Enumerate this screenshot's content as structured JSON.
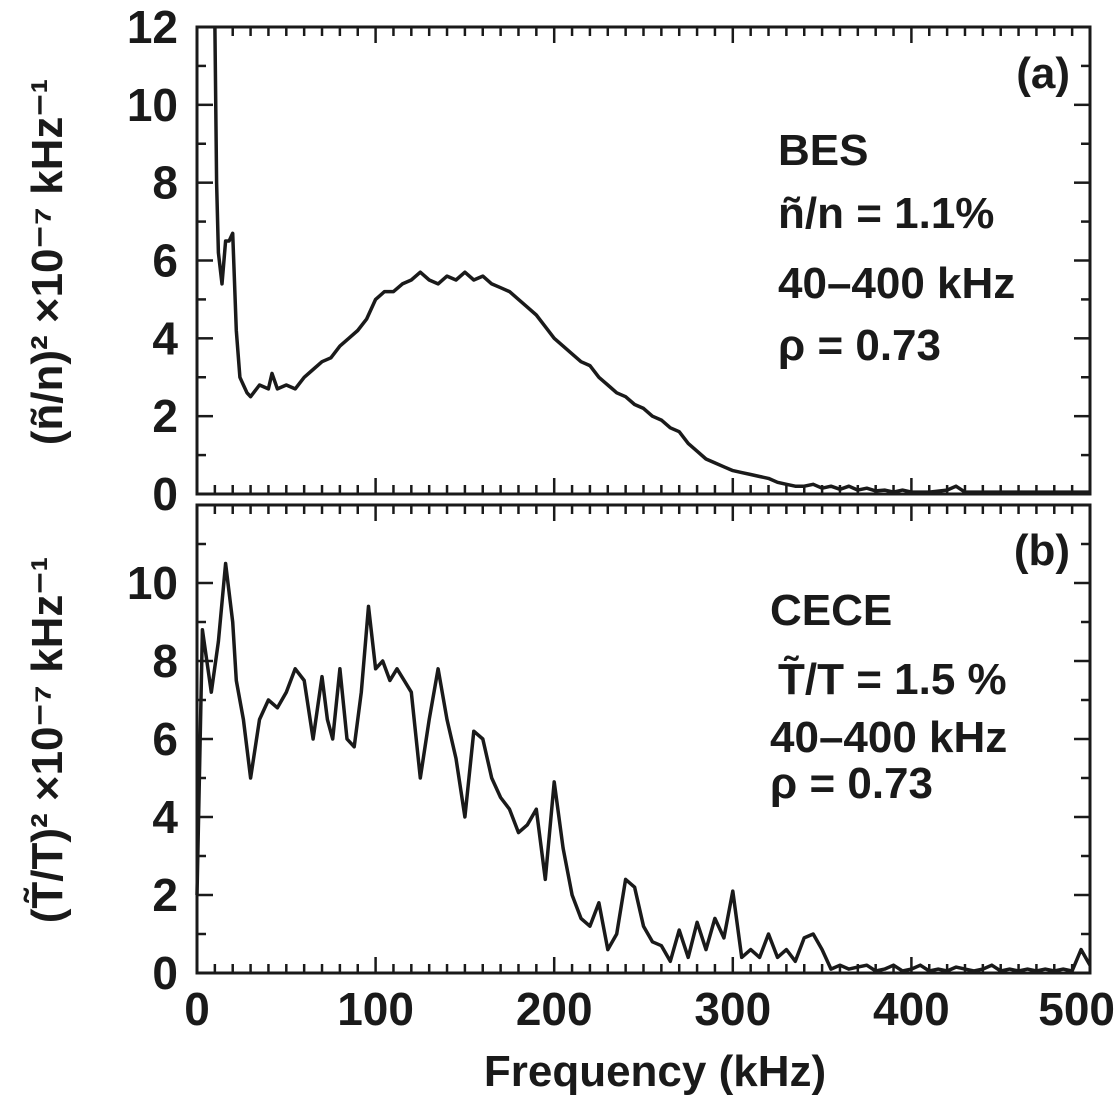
{
  "chart_data": [
    {
      "type": "line",
      "panel_label": "(a)",
      "ylabel": "(ñ/n)² ×10⁻⁷ kHz⁻¹",
      "xlabel": "",
      "xlim": [
        0,
        500
      ],
      "ylim": [
        0,
        12
      ],
      "yticks": [
        "0",
        "2",
        "4",
        "6",
        "8",
        "10",
        "12"
      ],
      "annotations": [
        "BES",
        "ñ/n = 1.1%",
        "40–400 kHz",
        "ρ = 0.73"
      ],
      "series": [
        {
          "x": [
            10,
            11,
            12,
            14,
            16,
            18,
            20,
            22,
            24,
            26,
            28,
            30,
            35,
            40,
            42,
            45,
            50,
            55,
            60,
            65,
            70,
            75,
            80,
            85,
            90,
            95,
            100,
            105,
            110,
            115,
            120,
            125,
            130,
            135,
            140,
            145,
            150,
            155,
            160,
            165,
            170,
            175,
            180,
            185,
            190,
            195,
            200,
            205,
            210,
            215,
            220,
            225,
            230,
            235,
            240,
            245,
            250,
            255,
            260,
            265,
            270,
            275,
            280,
            285,
            290,
            295,
            300,
            305,
            310,
            315,
            320,
            325,
            330,
            335,
            340,
            345,
            350,
            355,
            360,
            365,
            370,
            375,
            380,
            385,
            390,
            395,
            400,
            410,
            420,
            425,
            430,
            440,
            450,
            460,
            470,
            480,
            490,
            500
          ],
          "y": [
            12.5,
            8.0,
            6.2,
            5.4,
            6.5,
            6.5,
            6.7,
            4.2,
            3.0,
            2.8,
            2.6,
            2.5,
            2.8,
            2.7,
            3.1,
            2.7,
            2.8,
            2.7,
            3.0,
            3.2,
            3.4,
            3.5,
            3.8,
            4.0,
            4.2,
            4.5,
            5.0,
            5.2,
            5.2,
            5.4,
            5.5,
            5.7,
            5.5,
            5.4,
            5.6,
            5.5,
            5.7,
            5.5,
            5.6,
            5.4,
            5.3,
            5.2,
            5.0,
            4.8,
            4.6,
            4.3,
            4.0,
            3.8,
            3.6,
            3.4,
            3.3,
            3.0,
            2.8,
            2.6,
            2.5,
            2.3,
            2.2,
            2.0,
            1.9,
            1.7,
            1.6,
            1.3,
            1.1,
            0.9,
            0.8,
            0.7,
            0.6,
            0.55,
            0.5,
            0.45,
            0.4,
            0.3,
            0.25,
            0.2,
            0.2,
            0.25,
            0.15,
            0.2,
            0.12,
            0.2,
            0.1,
            0.15,
            0.08,
            0.1,
            0.05,
            0.1,
            0.05,
            0.05,
            0.1,
            0.2,
            0.05,
            0.05,
            0.05,
            0.05,
            0.05,
            0.05,
            0.05,
            0.05
          ]
        }
      ]
    },
    {
      "type": "line",
      "panel_label": "(b)",
      "ylabel": "(T̃/T)² ×10⁻⁷ kHz⁻¹",
      "xlabel": "Frequency (kHz)",
      "xlim": [
        0,
        500
      ],
      "ylim": [
        0,
        12
      ],
      "xticks": [
        "0",
        "100",
        "200",
        "300",
        "400",
        "500"
      ],
      "yticks": [
        "0",
        "2",
        "4",
        "6",
        "8",
        "10"
      ],
      "annotations": [
        "CECE",
        "T̃/T = 1.5 %",
        "40–400 kHz",
        "ρ = 0.73"
      ],
      "series": [
        {
          "x": [
            0,
            3,
            8,
            12,
            16,
            20,
            22,
            26,
            30,
            35,
            40,
            45,
            50,
            55,
            60,
            65,
            70,
            73,
            76,
            80,
            84,
            88,
            92,
            96,
            100,
            104,
            108,
            112,
            116,
            120,
            125,
            130,
            135,
            140,
            145,
            150,
            155,
            160,
            165,
            170,
            175,
            180,
            185,
            190,
            195,
            200,
            205,
            210,
            215,
            220,
            225,
            230,
            235,
            240,
            245,
            250,
            255,
            260,
            265,
            270,
            275,
            280,
            285,
            290,
            295,
            300,
            305,
            310,
            315,
            320,
            325,
            330,
            335,
            340,
            345,
            350,
            355,
            360,
            365,
            370,
            375,
            380,
            385,
            390,
            395,
            400,
            405,
            410,
            415,
            420,
            425,
            430,
            435,
            440,
            445,
            450,
            455,
            460,
            465,
            470,
            475,
            480,
            485,
            490,
            495,
            500
          ],
          "y": [
            2.0,
            8.8,
            7.2,
            8.5,
            10.5,
            9.0,
            7.5,
            6.5,
            5.0,
            6.5,
            7.0,
            6.8,
            7.2,
            7.8,
            7.5,
            6.0,
            7.6,
            6.5,
            6.0,
            7.8,
            6.0,
            5.8,
            7.2,
            9.4,
            7.8,
            8.0,
            7.5,
            7.8,
            7.5,
            7.2,
            5.0,
            6.5,
            7.8,
            6.5,
            5.5,
            4.0,
            6.2,
            6.0,
            5.0,
            4.5,
            4.2,
            3.6,
            3.8,
            4.2,
            2.4,
            4.9,
            3.2,
            2.0,
            1.4,
            1.2,
            1.8,
            0.6,
            1.0,
            2.4,
            2.2,
            1.2,
            0.8,
            0.7,
            0.3,
            1.1,
            0.4,
            1.3,
            0.6,
            1.4,
            0.9,
            2.1,
            0.4,
            0.6,
            0.4,
            1.0,
            0.4,
            0.6,
            0.3,
            0.9,
            1.0,
            0.6,
            0.1,
            0.2,
            0.1,
            0.15,
            0.2,
            0.05,
            0.1,
            0.2,
            0.05,
            0.1,
            0.2,
            0.05,
            0.1,
            0.05,
            0.15,
            0.1,
            0.05,
            0.1,
            0.2,
            0.05,
            0.1,
            0.05,
            0.1,
            0.05,
            0.1,
            0.05,
            0.1,
            0.05,
            0.6,
            0.2
          ]
        }
      ]
    }
  ]
}
